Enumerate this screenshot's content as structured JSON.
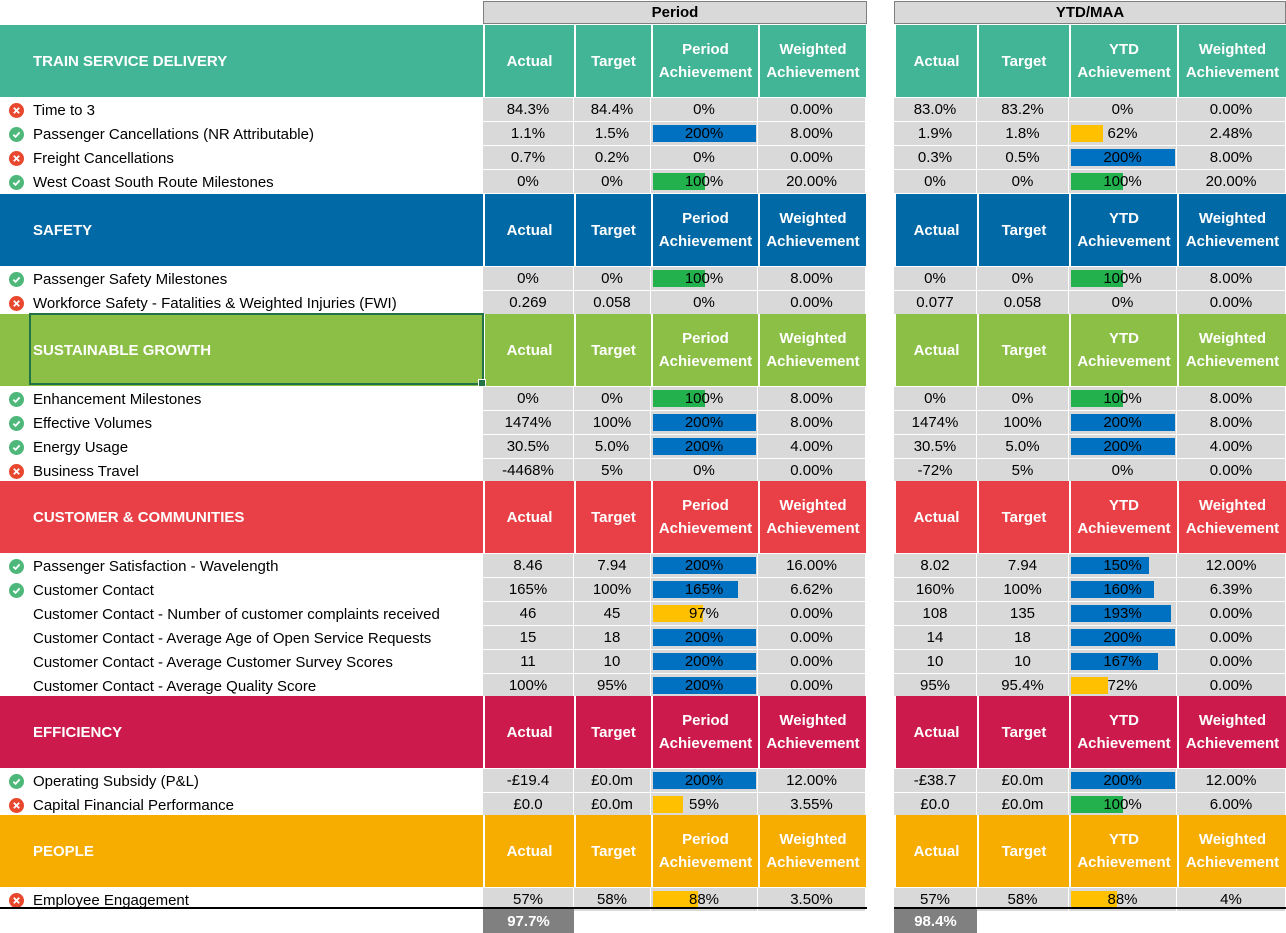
{
  "headers": {
    "period_group": "Period",
    "ytd_group": "YTD/MAA",
    "actual": "Actual",
    "target": "Target",
    "period_ach_1": "Period",
    "period_ach_2": "Achievement",
    "ytd_ach_1": "YTD",
    "ytd_ach_2": "Achievement",
    "weighted_1": "Weighted",
    "weighted_2": "Achievement"
  },
  "colors": {
    "bar_blue": "#0070c0",
    "bar_green": "#22b14c",
    "bar_amber": "#ffc000",
    "ok_icon": "#4db87a",
    "bad_icon": "#e8482d"
  },
  "sections": [
    {
      "title": "TRAIN SERVICE DELIVERY",
      "color": "#43b597",
      "id": "train",
      "rows": [
        {
          "label": "Time to 3",
          "status": "bad",
          "p_actual": "84.3%",
          "p_target": "84.4%",
          "p_ach": "0%",
          "p_ach_level": 0,
          "p_bar": "none",
          "p_weighted": "0.00%",
          "y_actual": "83.0%",
          "y_target": "83.2%",
          "y_ach": "0%",
          "y_ach_level": 0,
          "y_bar": "none",
          "y_weighted": "0.00%"
        },
        {
          "label": "Passenger Cancellations (NR Attributable)",
          "status": "ok",
          "p_actual": "1.1%",
          "p_target": "1.5%",
          "p_ach": "200%",
          "p_ach_level": 2.0,
          "p_bar": "blue",
          "p_weighted": "8.00%",
          "y_actual": "1.9%",
          "y_target": "1.8%",
          "y_ach": "62%",
          "y_ach_level": 0.62,
          "y_bar": "amber",
          "y_weighted": "2.48%"
        },
        {
          "label": "Freight Cancellations",
          "status": "bad",
          "p_actual": "0.7%",
          "p_target": "0.2%",
          "p_ach": "0%",
          "p_ach_level": 0,
          "p_bar": "none",
          "p_weighted": "0.00%",
          "y_actual": "0.3%",
          "y_target": "0.5%",
          "y_ach": "200%",
          "y_ach_level": 2.0,
          "y_bar": "blue",
          "y_weighted": "8.00%"
        },
        {
          "label": "West Coast South Route Milestones",
          "status": "ok",
          "p_actual": "0%",
          "p_target": "0%",
          "p_ach": "100%",
          "p_ach_level": 1.0,
          "p_bar": "green",
          "p_weighted": "20.00%",
          "y_actual": "0%",
          "y_target": "0%",
          "y_ach": "100%",
          "y_ach_level": 1.0,
          "y_bar": "green",
          "y_weighted": "20.00%"
        }
      ]
    },
    {
      "title": "SAFETY",
      "color": "#0069a6",
      "id": "safety",
      "rows": [
        {
          "label": "Passenger Safety Milestones",
          "status": "ok",
          "p_actual": "0%",
          "p_target": "0%",
          "p_ach": "100%",
          "p_ach_level": 1.0,
          "p_bar": "green",
          "p_weighted": "8.00%",
          "y_actual": "0%",
          "y_target": "0%",
          "y_ach": "100%",
          "y_ach_level": 1.0,
          "y_bar": "green",
          "y_weighted": "8.00%"
        },
        {
          "label": "Workforce Safety - Fatalities & Weighted Injuries (FWI)",
          "status": "bad",
          "p_actual": "0.269",
          "p_target": "0.058",
          "p_ach": "0%",
          "p_ach_level": 0,
          "p_bar": "none",
          "p_weighted": "0.00%",
          "y_actual": "0.077",
          "y_target": "0.058",
          "y_ach": "0%",
          "y_ach_level": 0,
          "y_bar": "none",
          "y_weighted": "0.00%"
        }
      ]
    },
    {
      "title": "SUSTAINABLE GROWTH",
      "color": "#8bbf45",
      "id": "growth",
      "rows": [
        {
          "label": "Enhancement Milestones",
          "status": "ok",
          "p_actual": "0%",
          "p_target": "0%",
          "p_ach": "100%",
          "p_ach_level": 1.0,
          "p_bar": "green",
          "p_weighted": "8.00%",
          "y_actual": "0%",
          "y_target": "0%",
          "y_ach": "100%",
          "y_ach_level": 1.0,
          "y_bar": "green",
          "y_weighted": "8.00%"
        },
        {
          "label": "Effective Volumes",
          "status": "ok",
          "p_actual": "1474%",
          "p_target": "100%",
          "p_ach": "200%",
          "p_ach_level": 2.0,
          "p_bar": "blue",
          "p_weighted": "8.00%",
          "y_actual": "1474%",
          "y_target": "100%",
          "y_ach": "200%",
          "y_ach_level": 2.0,
          "y_bar": "blue",
          "y_weighted": "8.00%"
        },
        {
          "label": "Energy Usage",
          "status": "ok",
          "p_actual": "30.5%",
          "p_target": "5.0%",
          "p_ach": "200%",
          "p_ach_level": 2.0,
          "p_bar": "blue",
          "p_weighted": "4.00%",
          "y_actual": "30.5%",
          "y_target": "5.0%",
          "y_ach": "200%",
          "y_ach_level": 2.0,
          "y_bar": "blue",
          "y_weighted": "4.00%"
        },
        {
          "label": "Business Travel",
          "status": "bad",
          "p_actual": "-4468%",
          "p_target": "5%",
          "p_ach": "0%",
          "p_ach_level": 0,
          "p_bar": "none",
          "p_weighted": "0.00%",
          "y_actual": "-72%",
          "y_target": "5%",
          "y_ach": "0%",
          "y_ach_level": 0,
          "y_bar": "none",
          "y_weighted": "0.00%"
        }
      ]
    },
    {
      "title": "CUSTOMER & COMMUNITIES",
      "color": "#e84046",
      "id": "customer",
      "rows": [
        {
          "label": "Passenger Satisfaction - Wavelength",
          "status": "ok",
          "p_actual": "8.46",
          "p_target": "7.94",
          "p_ach": "200%",
          "p_ach_level": 2.0,
          "p_bar": "blue",
          "p_weighted": "16.00%",
          "y_actual": "8.02",
          "y_target": "7.94",
          "y_ach": "150%",
          "y_ach_level": 1.5,
          "y_bar": "blue",
          "y_weighted": "12.00%"
        },
        {
          "label": "Customer Contact",
          "status": "ok",
          "p_actual": "165%",
          "p_target": "100%",
          "p_ach": "165%",
          "p_ach_level": 1.65,
          "p_bar": "blue",
          "p_weighted": "6.62%",
          "y_actual": "160%",
          "y_target": "100%",
          "y_ach": "160%",
          "y_ach_level": 1.6,
          "y_bar": "blue",
          "y_weighted": "6.39%"
        },
        {
          "label": "Customer Contact - Number of customer complaints received",
          "status": "none",
          "p_actual": "46",
          "p_target": "45",
          "p_ach": "97%",
          "p_ach_level": 0.97,
          "p_bar": "amber",
          "p_weighted": "0.00%",
          "y_actual": "108",
          "y_target": "135",
          "y_ach": "193%",
          "y_ach_level": 1.93,
          "y_bar": "blue",
          "y_weighted": "0.00%"
        },
        {
          "label": "Customer Contact - Average Age of Open Service Requests",
          "status": "none",
          "p_actual": "15",
          "p_target": "18",
          "p_ach": "200%",
          "p_ach_level": 2.0,
          "p_bar": "blue",
          "p_weighted": "0.00%",
          "y_actual": "14",
          "y_target": "18",
          "y_ach": "200%",
          "y_ach_level": 2.0,
          "y_bar": "blue",
          "y_weighted": "0.00%"
        },
        {
          "label": "Customer Contact - Average Customer Survey Scores",
          "status": "none",
          "p_actual": "11",
          "p_target": "10",
          "p_ach": "200%",
          "p_ach_level": 2.0,
          "p_bar": "blue",
          "p_weighted": "0.00%",
          "y_actual": "10",
          "y_target": "10",
          "y_ach": "167%",
          "y_ach_level": 1.67,
          "y_bar": "blue",
          "y_weighted": "0.00%"
        },
        {
          "label": "Customer Contact - Average Quality Score",
          "status": "none",
          "p_actual": "100%",
          "p_target": "95%",
          "p_ach": "200%",
          "p_ach_level": 2.0,
          "p_bar": "blue",
          "p_weighted": "0.00%",
          "y_actual": "95%",
          "y_target": "95.4%",
          "y_ach": "72%",
          "y_ach_level": 0.72,
          "y_bar": "amber",
          "y_weighted": "0.00%"
        }
      ]
    },
    {
      "title": "EFFICIENCY",
      "color": "#cc1a4c",
      "id": "efficiency",
      "rows": [
        {
          "label": "Operating Subsidy (P&L)",
          "status": "ok",
          "p_actual": "-£19.4",
          "p_target": "£0.0m",
          "p_ach": "200%",
          "p_ach_level": 2.0,
          "p_bar": "blue",
          "p_weighted": "12.00%",
          "y_actual": "-£38.7",
          "y_target": "£0.0m",
          "y_ach": "200%",
          "y_ach_level": 2.0,
          "y_bar": "blue",
          "y_weighted": "12.00%"
        },
        {
          "label": "Capital Financial Performance",
          "status": "bad",
          "p_actual": "£0.0",
          "p_target": "£0.0m",
          "p_ach": "59%",
          "p_ach_level": 0.59,
          "p_bar": "amber",
          "p_weighted": "3.55%",
          "y_actual": "£0.0",
          "y_target": "£0.0m",
          "y_ach": "100%",
          "y_ach_level": 1.0,
          "y_bar": "green",
          "y_weighted": "6.00%"
        }
      ]
    },
    {
      "title": "PEOPLE",
      "color": "#f7ac00",
      "id": "people",
      "rows": [
        {
          "label": "Employee Engagement",
          "status": "bad",
          "p_actual": "57%",
          "p_target": "58%",
          "p_ach": "88%",
          "p_ach_level": 0.88,
          "p_bar": "amber",
          "p_weighted": "3.50%",
          "y_actual": "57%",
          "y_target": "58%",
          "y_ach": "88%",
          "y_ach_level": 0.88,
          "y_bar": "amber",
          "y_weighted": "4%"
        }
      ]
    }
  ],
  "totals": {
    "period": "97.7%",
    "ytd": "98.4%"
  }
}
